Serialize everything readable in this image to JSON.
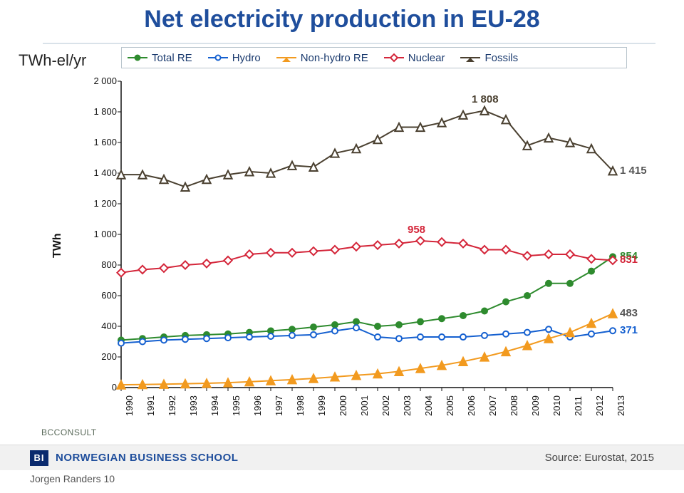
{
  "title": "Net electricity production in EU-28",
  "unit_label": "TWh-el/yr",
  "y_axis_label": "TWh",
  "consult_label": "BCCONSULT",
  "footer": {
    "logo_text": "BI",
    "school": "NORWEGIAN BUSINESS SCHOOL",
    "source": "Source: Eurostat, 2015",
    "author": "Jorgen Randers 10"
  },
  "chart": {
    "type": "line",
    "background_color": "#ffffff",
    "grid": false,
    "x": {
      "categories": [
        "1990",
        "1991",
        "1992",
        "1993",
        "1994",
        "1995",
        "1996",
        "1997",
        "1998",
        "1999",
        "2000",
        "2001",
        "2002",
        "2003",
        "2004",
        "2005",
        "2006",
        "2007",
        "2008",
        "2009",
        "2010",
        "2011",
        "2012",
        "2013"
      ],
      "label_fontsize": 13,
      "rotation": -90
    },
    "y": {
      "min": 0,
      "max": 2000,
      "tick_step": 200,
      "ticks": [
        0,
        200,
        400,
        600,
        800,
        1000,
        1200,
        1400,
        1600,
        1800,
        2000
      ],
      "tick_labels": [
        "0",
        "200",
        "400",
        "600",
        "800",
        "1 000",
        "1 200",
        "1 400",
        "1 600",
        "1 800",
        "2 000"
      ],
      "label_fontsize": 13
    },
    "line_width": 2,
    "marker_size": 8,
    "series": [
      {
        "name": "Total RE",
        "color": "#2e8b2e",
        "marker": "circle",
        "marker_fill": "#2e8b2e",
        "end_label": "854",
        "end_label_color": "#2e8b2e",
        "values": [
          310,
          320,
          330,
          340,
          345,
          350,
          360,
          370,
          380,
          395,
          410,
          430,
          400,
          410,
          430,
          450,
          470,
          500,
          560,
          600,
          680,
          680,
          760,
          854
        ]
      },
      {
        "name": "Hydro",
        "color": "#1560d0",
        "marker": "circle",
        "marker_fill": "#ffffff",
        "end_label": "371",
        "end_label_color": "#1560d0",
        "values": [
          290,
          300,
          310,
          315,
          320,
          325,
          330,
          335,
          340,
          345,
          370,
          390,
          330,
          320,
          330,
          330,
          330,
          340,
          350,
          360,
          380,
          330,
          350,
          371
        ]
      },
      {
        "name": "Non-hydro RE",
        "color": "#f29a1f",
        "marker": "triangle",
        "marker_fill": "#f29a1f",
        "end_label": "483",
        "end_label_color": "#555555",
        "values": [
          18,
          20,
          22,
          25,
          28,
          32,
          38,
          45,
          52,
          60,
          70,
          80,
          90,
          105,
          125,
          145,
          170,
          200,
          235,
          275,
          320,
          360,
          420,
          483
        ]
      },
      {
        "name": "Nuclear",
        "color": "#d4263a",
        "marker": "diamond",
        "marker_fill": "#ffffff",
        "end_label": "831",
        "end_label_color": "#d4263a",
        "peak_label": "958",
        "peak_index": 14,
        "values": [
          750,
          770,
          780,
          800,
          810,
          830,
          870,
          880,
          880,
          890,
          900,
          920,
          930,
          940,
          958,
          950,
          940,
          900,
          900,
          860,
          870,
          870,
          840,
          831
        ]
      },
      {
        "name": "Fossils",
        "color": "#4a4030",
        "marker": "triangle",
        "marker_fill": "#ffffff",
        "end_label": "1 415",
        "end_label_color": "#555555",
        "peak_label": "1 808",
        "peak_index": 17,
        "values": [
          1390,
          1390,
          1360,
          1310,
          1360,
          1390,
          1410,
          1400,
          1450,
          1440,
          1530,
          1560,
          1620,
          1700,
          1700,
          1730,
          1780,
          1808,
          1750,
          1580,
          1630,
          1600,
          1560,
          1415
        ]
      }
    ],
    "legend": {
      "position": "top",
      "border_color": "#b8c4cc",
      "font_color": "#1a3a6e",
      "fontsize": 15
    }
  }
}
